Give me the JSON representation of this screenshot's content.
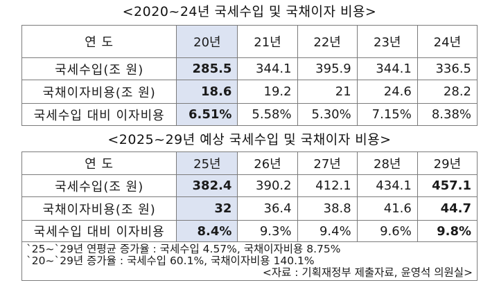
{
  "table_2020_2024": {
    "title": "<2020~24년 국세수입 및 국채이자 비용>",
    "header": {
      "label": "연 도",
      "years": [
        "20년",
        "21년",
        "22년",
        "23년",
        "24년"
      ]
    },
    "rows": [
      {
        "label": "국세수입(조 원)",
        "values": [
          "285.5",
          "344.1",
          "395.9",
          "344.1",
          "336.5"
        ]
      },
      {
        "label": "국채이자비용(조 원)",
        "values": [
          "18.6",
          "19.2",
          "21",
          "24.6",
          "28.2"
        ]
      },
      {
        "label": "국세수입 대비 이자비용",
        "values": [
          "6.51%",
          "5.58%",
          "5.30%",
          "7.15%",
          "8.38%"
        ]
      }
    ],
    "highlight_color": "#dce3f2"
  },
  "table_2025_2029": {
    "title": "<2025~29년 예상 국세수입 및 국채이자 비용>",
    "header": {
      "label": "연 도",
      "years": [
        "25년",
        "26년",
        "27년",
        "28년",
        "29년"
      ]
    },
    "rows": [
      {
        "label": "국세수입(조 원)",
        "values": [
          "382.4",
          "390.2",
          "412.1",
          "434.1",
          "457.1"
        ]
      },
      {
        "label": "국채이자비용(조 원)",
        "values": [
          "32",
          "36.4",
          "38.8",
          "41.6",
          "44.7"
        ]
      },
      {
        "label": "국세수입 대비 이자비용",
        "values": [
          "8.4%",
          "9.3%",
          "9.4%",
          "9.6%",
          "9.8%"
        ]
      }
    ],
    "notes": {
      "line1": "`25~`29년 연평균 증가율 : 국세수입 4.57%, 국채이자비용 8.75%",
      "line2": "`20~`29년 증가율 : 국세수입 60.1%, 국채이자비용 140.1%",
      "source": "<자료 : 기획재정부 제출자료, 윤영석 의원실>"
    },
    "highlight_color": "#dce3f2"
  }
}
